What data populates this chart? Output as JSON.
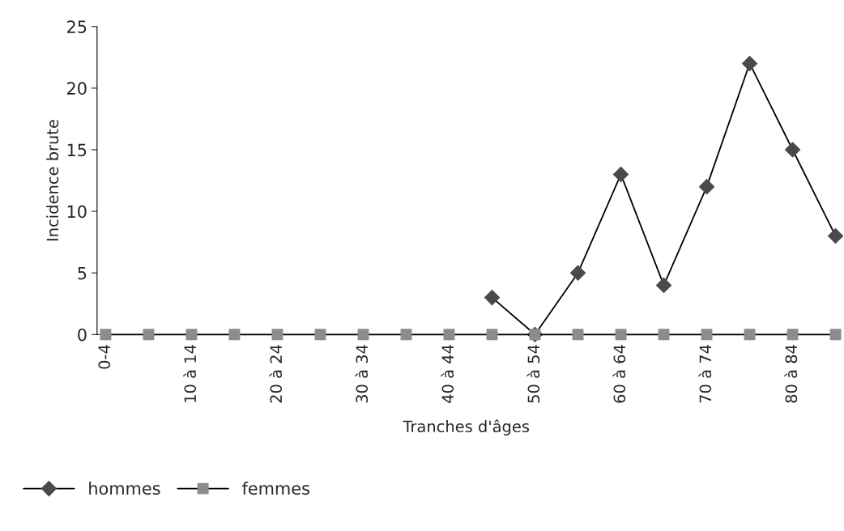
{
  "chart_data": {
    "type": "line",
    "xlabel": "Tranches d'âges",
    "ylabel": "Incidence brute",
    "categories": [
      "0-4",
      null,
      "10 à 14",
      null,
      "20 à 24",
      null,
      "30 à 34",
      null,
      "40 à 44",
      null,
      "50 à 54",
      null,
      "60 à 64",
      null,
      "70 à 74",
      null,
      "80 à 84",
      null
    ],
    "series": [
      {
        "name": "hommes",
        "color": "#4a4a4a",
        "marker": "diamond",
        "values": [
          null,
          null,
          null,
          null,
          null,
          null,
          null,
          null,
          null,
          3,
          0,
          5,
          13,
          4,
          12,
          22,
          15,
          8
        ]
      },
      {
        "name": "femmes",
        "color": "#8c8c8c",
        "marker": "square",
        "values": [
          0,
          0,
          0,
          0,
          0,
          0,
          0,
          0,
          0,
          0,
          0,
          0,
          0,
          0,
          0,
          0,
          0,
          0
        ]
      }
    ],
    "ylim": [
      0,
      25
    ],
    "yticks": [
      0,
      5,
      10,
      15,
      20,
      25
    ],
    "grid": false,
    "legend": "bottom"
  }
}
